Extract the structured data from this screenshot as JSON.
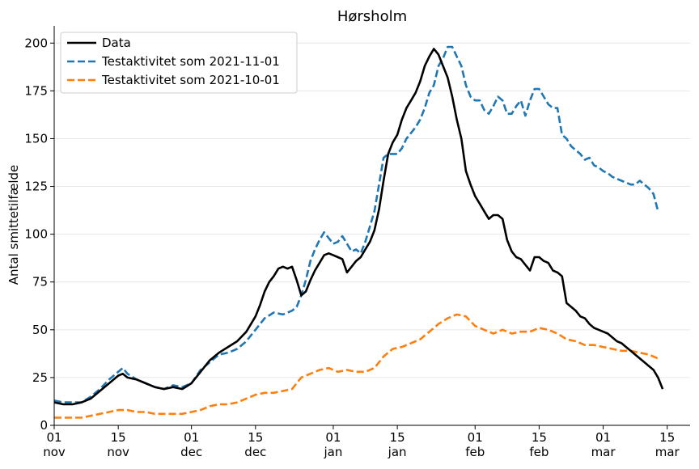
{
  "chart_data": {
    "type": "line",
    "title": "Hørsholm",
    "xlabel": "",
    "ylabel": "Antal smittetilfælde",
    "ylim": [
      0,
      209
    ],
    "xlim_days": [
      0,
      139
    ],
    "grid": "horizontal",
    "legend_position": "top-left",
    "y_ticks": [
      0,
      25,
      50,
      75,
      100,
      125,
      150,
      175,
      200
    ],
    "x_ticks": [
      {
        "day": 0,
        "label": "01\nnov"
      },
      {
        "day": 14,
        "label": "15\nnov"
      },
      {
        "day": 30,
        "label": "01\ndec"
      },
      {
        "day": 44,
        "label": "15\ndec"
      },
      {
        "day": 61,
        "label": "01\njan"
      },
      {
        "day": 75,
        "label": "15\njan"
      },
      {
        "day": 92,
        "label": "01\nfeb"
      },
      {
        "day": 106,
        "label": "15\nfeb"
      },
      {
        "day": 120,
        "label": "01\nmar"
      },
      {
        "day": 134,
        "label": "15\nmar"
      }
    ],
    "series": [
      {
        "name": "Data",
        "color": "#000000",
        "style": "solid",
        "points": [
          [
            0,
            12
          ],
          [
            2,
            11
          ],
          [
            4,
            11
          ],
          [
            6,
            12
          ],
          [
            8,
            14
          ],
          [
            10,
            18
          ],
          [
            12,
            22
          ],
          [
            14,
            26
          ],
          [
            15,
            27
          ],
          [
            16,
            25
          ],
          [
            18,
            24
          ],
          [
            20,
            22
          ],
          [
            22,
            20
          ],
          [
            24,
            19
          ],
          [
            26,
            20
          ],
          [
            28,
            19
          ],
          [
            30,
            22
          ],
          [
            32,
            28
          ],
          [
            34,
            34
          ],
          [
            36,
            38
          ],
          [
            38,
            41
          ],
          [
            40,
            44
          ],
          [
            42,
            49
          ],
          [
            44,
            57
          ],
          [
            45,
            63
          ],
          [
            46,
            70
          ],
          [
            47,
            75
          ],
          [
            48,
            78
          ],
          [
            49,
            82
          ],
          [
            50,
            83
          ],
          [
            51,
            82
          ],
          [
            52,
            83
          ],
          [
            53,
            76
          ],
          [
            54,
            68
          ],
          [
            55,
            70
          ],
          [
            56,
            76
          ],
          [
            57,
            81
          ],
          [
            58,
            85
          ],
          [
            59,
            89
          ],
          [
            60,
            90
          ],
          [
            61,
            89
          ],
          [
            62,
            88
          ],
          [
            63,
            87
          ],
          [
            64,
            80
          ],
          [
            65,
            83
          ],
          [
            66,
            86
          ],
          [
            67,
            88
          ],
          [
            68,
            92
          ],
          [
            69,
            96
          ],
          [
            70,
            102
          ],
          [
            71,
            113
          ],
          [
            72,
            128
          ],
          [
            73,
            142
          ],
          [
            74,
            148
          ],
          [
            75,
            152
          ],
          [
            76,
            160
          ],
          [
            77,
            166
          ],
          [
            78,
            170
          ],
          [
            79,
            174
          ],
          [
            80,
            180
          ],
          [
            81,
            188
          ],
          [
            82,
            193
          ],
          [
            83,
            197
          ],
          [
            84,
            194
          ],
          [
            85,
            188
          ],
          [
            86,
            182
          ],
          [
            87,
            172
          ],
          [
            88,
            160
          ],
          [
            89,
            150
          ],
          [
            90,
            133
          ],
          [
            91,
            126
          ],
          [
            92,
            120
          ],
          [
            93,
            116
          ],
          [
            94,
            112
          ],
          [
            95,
            108
          ],
          [
            96,
            110
          ],
          [
            97,
            110
          ],
          [
            98,
            108
          ],
          [
            99,
            97
          ],
          [
            100,
            91
          ],
          [
            101,
            88
          ],
          [
            102,
            87
          ],
          [
            103,
            84
          ],
          [
            104,
            81
          ],
          [
            105,
            88
          ],
          [
            106,
            88
          ],
          [
            107,
            86
          ],
          [
            108,
            85
          ],
          [
            109,
            81
          ],
          [
            110,
            80
          ],
          [
            111,
            78
          ],
          [
            112,
            64
          ],
          [
            113,
            62
          ],
          [
            114,
            60
          ],
          [
            115,
            57
          ],
          [
            116,
            56
          ],
          [
            117,
            53
          ],
          [
            118,
            51
          ],
          [
            119,
            50
          ],
          [
            120,
            49
          ],
          [
            121,
            48
          ],
          [
            122,
            46
          ],
          [
            123,
            44
          ],
          [
            124,
            43
          ],
          [
            125,
            41
          ],
          [
            126,
            39
          ],
          [
            127,
            37
          ],
          [
            128,
            35
          ],
          [
            129,
            33
          ],
          [
            130,
            31
          ],
          [
            131,
            29
          ],
          [
            132,
            25
          ],
          [
            133,
            19
          ]
        ]
      },
      {
        "name": "Testaktivitet som 2021-11-01",
        "color": "#1f77b4",
        "style": "dashed",
        "points": [
          [
            0,
            13
          ],
          [
            2,
            12
          ],
          [
            4,
            12
          ],
          [
            6,
            12
          ],
          [
            8,
            15
          ],
          [
            10,
            19
          ],
          [
            12,
            24
          ],
          [
            14,
            28
          ],
          [
            15,
            30
          ],
          [
            16,
            27
          ],
          [
            18,
            24
          ],
          [
            20,
            22
          ],
          [
            22,
            20
          ],
          [
            24,
            19
          ],
          [
            26,
            21
          ],
          [
            28,
            20
          ],
          [
            30,
            22
          ],
          [
            32,
            29
          ],
          [
            34,
            33
          ],
          [
            36,
            37
          ],
          [
            38,
            38
          ],
          [
            40,
            40
          ],
          [
            42,
            44
          ],
          [
            44,
            50
          ],
          [
            46,
            56
          ],
          [
            48,
            59
          ],
          [
            50,
            58
          ],
          [
            52,
            60
          ],
          [
            53,
            62
          ],
          [
            54,
            68
          ],
          [
            55,
            76
          ],
          [
            56,
            86
          ],
          [
            57,
            92
          ],
          [
            58,
            97
          ],
          [
            59,
            101
          ],
          [
            60,
            98
          ],
          [
            61,
            95
          ],
          [
            62,
            96
          ],
          [
            63,
            99
          ],
          [
            64,
            95
          ],
          [
            65,
            91
          ],
          [
            66,
            92
          ],
          [
            67,
            90
          ],
          [
            68,
            96
          ],
          [
            69,
            104
          ],
          [
            70,
            112
          ],
          [
            71,
            126
          ],
          [
            72,
            140
          ],
          [
            73,
            142
          ],
          [
            74,
            142
          ],
          [
            75,
            142
          ],
          [
            76,
            145
          ],
          [
            77,
            150
          ],
          [
            78,
            153
          ],
          [
            79,
            156
          ],
          [
            80,
            160
          ],
          [
            81,
            166
          ],
          [
            82,
            174
          ],
          [
            83,
            178
          ],
          [
            84,
            188
          ],
          [
            85,
            192
          ],
          [
            86,
            198
          ],
          [
            87,
            198
          ],
          [
            88,
            193
          ],
          [
            89,
            188
          ],
          [
            90,
            178
          ],
          [
            91,
            172
          ],
          [
            92,
            170
          ],
          [
            93,
            170
          ],
          [
            94,
            165
          ],
          [
            95,
            163
          ],
          [
            96,
            167
          ],
          [
            97,
            172
          ],
          [
            98,
            170
          ],
          [
            99,
            163
          ],
          [
            100,
            163
          ],
          [
            101,
            167
          ],
          [
            102,
            170
          ],
          [
            103,
            162
          ],
          [
            104,
            170
          ],
          [
            105,
            176
          ],
          [
            106,
            176
          ],
          [
            107,
            172
          ],
          [
            108,
            168
          ],
          [
            109,
            166
          ],
          [
            110,
            166
          ],
          [
            111,
            152
          ],
          [
            112,
            150
          ],
          [
            113,
            146
          ],
          [
            114,
            144
          ],
          [
            115,
            142
          ],
          [
            116,
            139
          ],
          [
            117,
            140
          ],
          [
            118,
            136
          ],
          [
            119,
            135
          ],
          [
            120,
            133
          ],
          [
            121,
            132
          ],
          [
            122,
            130
          ],
          [
            123,
            129
          ],
          [
            124,
            128
          ],
          [
            125,
            127
          ],
          [
            126,
            126
          ],
          [
            127,
            126
          ],
          [
            128,
            128
          ],
          [
            129,
            126
          ],
          [
            130,
            124
          ],
          [
            131,
            121
          ],
          [
            132,
            112
          ]
        ]
      },
      {
        "name": "Testaktivitet som 2021-10-01",
        "color": "#ff7f0e",
        "style": "dashed",
        "points": [
          [
            0,
            4
          ],
          [
            2,
            4
          ],
          [
            4,
            4
          ],
          [
            6,
            4
          ],
          [
            8,
            5
          ],
          [
            10,
            6
          ],
          [
            12,
            7
          ],
          [
            14,
            8
          ],
          [
            16,
            8
          ],
          [
            18,
            7
          ],
          [
            20,
            7
          ],
          [
            22,
            6
          ],
          [
            24,
            6
          ],
          [
            26,
            6
          ],
          [
            28,
            6
          ],
          [
            30,
            7
          ],
          [
            32,
            8
          ],
          [
            34,
            10
          ],
          [
            36,
            11
          ],
          [
            38,
            11
          ],
          [
            40,
            12
          ],
          [
            42,
            14
          ],
          [
            44,
            16
          ],
          [
            46,
            17
          ],
          [
            48,
            17
          ],
          [
            50,
            18
          ],
          [
            52,
            19
          ],
          [
            54,
            25
          ],
          [
            56,
            27
          ],
          [
            58,
            29
          ],
          [
            60,
            30
          ],
          [
            62,
            28
          ],
          [
            64,
            29
          ],
          [
            66,
            28
          ],
          [
            68,
            28
          ],
          [
            70,
            30
          ],
          [
            72,
            36
          ],
          [
            74,
            40
          ],
          [
            76,
            41
          ],
          [
            78,
            43
          ],
          [
            80,
            45
          ],
          [
            82,
            49
          ],
          [
            84,
            53
          ],
          [
            86,
            56
          ],
          [
            88,
            58
          ],
          [
            90,
            57
          ],
          [
            92,
            52
          ],
          [
            94,
            50
          ],
          [
            96,
            48
          ],
          [
            98,
            50
          ],
          [
            100,
            48
          ],
          [
            102,
            49
          ],
          [
            104,
            49
          ],
          [
            106,
            51
          ],
          [
            108,
            50
          ],
          [
            110,
            48
          ],
          [
            112,
            45
          ],
          [
            114,
            44
          ],
          [
            116,
            42
          ],
          [
            118,
            42
          ],
          [
            120,
            41
          ],
          [
            122,
            40
          ],
          [
            124,
            39
          ],
          [
            126,
            39
          ],
          [
            128,
            38
          ],
          [
            130,
            37
          ],
          [
            132,
            35
          ]
        ]
      }
    ]
  }
}
